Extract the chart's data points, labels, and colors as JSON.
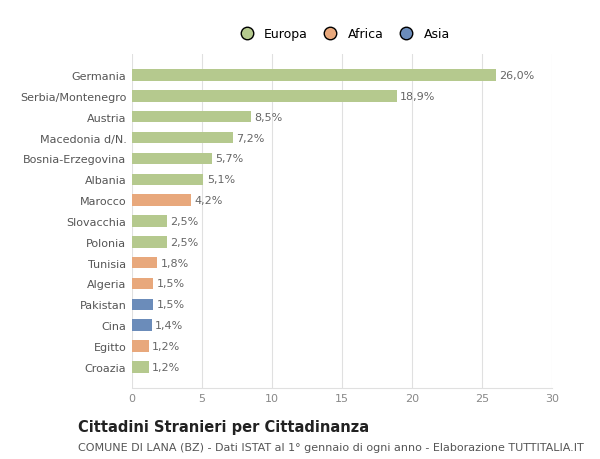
{
  "categories": [
    "Croazia",
    "Egitto",
    "Cina",
    "Pakistan",
    "Algeria",
    "Tunisia",
    "Polonia",
    "Slovacchia",
    "Marocco",
    "Albania",
    "Bosnia-Erzegovina",
    "Macedonia d/N.",
    "Austria",
    "Serbia/Montenegro",
    "Germania"
  ],
  "values": [
    1.2,
    1.2,
    1.4,
    1.5,
    1.5,
    1.8,
    2.5,
    2.5,
    4.2,
    5.1,
    5.7,
    7.2,
    8.5,
    18.9,
    26.0
  ],
  "labels": [
    "1,2%",
    "1,2%",
    "1,4%",
    "1,5%",
    "1,5%",
    "1,8%",
    "2,5%",
    "2,5%",
    "4,2%",
    "5,1%",
    "5,7%",
    "7,2%",
    "8,5%",
    "18,9%",
    "26,0%"
  ],
  "colors": [
    "#b5c98e",
    "#e8a87c",
    "#6b8cba",
    "#6b8cba",
    "#e8a87c",
    "#e8a87c",
    "#b5c98e",
    "#b5c98e",
    "#e8a87c",
    "#b5c98e",
    "#b5c98e",
    "#b5c98e",
    "#b5c98e",
    "#b5c98e",
    "#b5c98e"
  ],
  "legend_labels": [
    "Europa",
    "Africa",
    "Asia"
  ],
  "legend_colors": [
    "#b5c98e",
    "#e8a87c",
    "#6b8cba"
  ],
  "title": "Cittadini Stranieri per Cittadinanza",
  "subtitle": "COMUNE DI LANA (BZ) - Dati ISTAT al 1° gennaio di ogni anno - Elaborazione TUTTITALIA.IT",
  "xlim": [
    0,
    30
  ],
  "xticks": [
    0,
    5,
    10,
    15,
    20,
    25,
    30
  ],
  "background_color": "#ffffff",
  "grid_color": "#e0e0e0",
  "bar_height": 0.55,
  "title_fontsize": 10.5,
  "subtitle_fontsize": 8,
  "label_fontsize": 8,
  "tick_fontsize": 8,
  "legend_fontsize": 9
}
